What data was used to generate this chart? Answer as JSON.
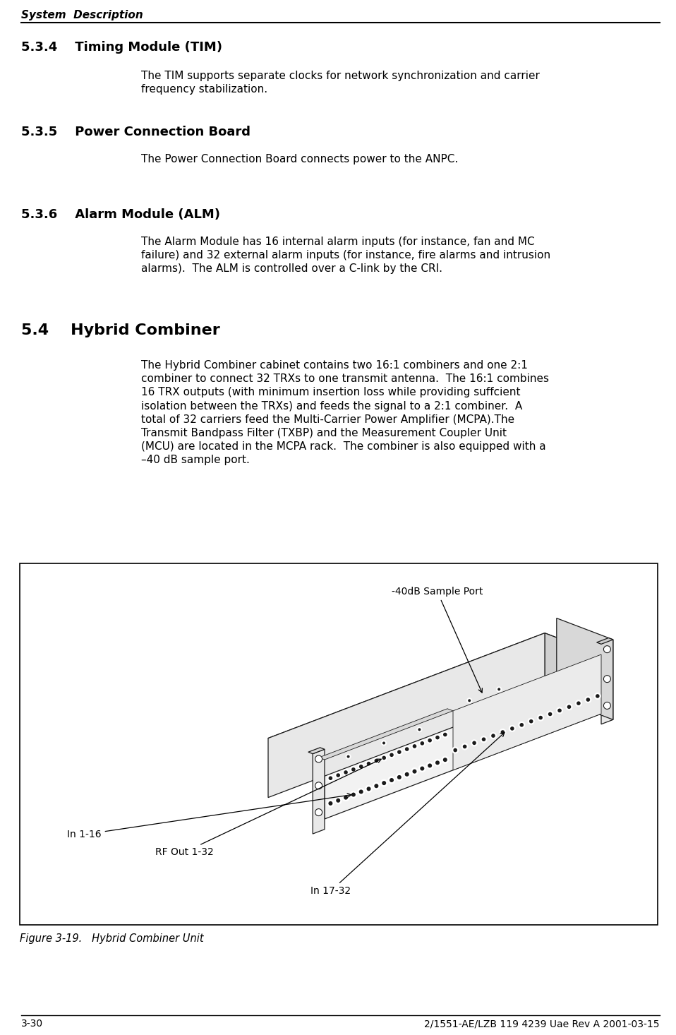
{
  "page_bg": "#ffffff",
  "header_text": "System  Description",
  "footer_left": "3-30",
  "footer_right": "2/1551-AE/LZB 119 4239 Uae Rev A 2001-03-15",
  "section_534_title": "5.3.4    Timing Module (TIM)",
  "section_534_body": "The TIM supports separate clocks for network synchronization and carrier\nfrequency stabilization.",
  "section_535_title": "5.3.5    Power Connection Board",
  "section_535_body": "The Power Connection Board connects power to the ANPC.",
  "section_536_title": "5.3.6    Alarm Module (ALM)",
  "section_536_body": "The Alarm Module has 16 internal alarm inputs (for instance, fan and MC\nfailure) and 32 external alarm inputs (for instance, fire alarms and intrusion\nalarms).  The ALM is controlled over a C-link by the CRI.",
  "section_54_title": "5.4    Hybrid Combiner",
  "section_54_body": "The Hybrid Combiner cabinet contains two 16:1 combiners and one 2:1\ncombiner to connect 32 TRXs to one transmit antenna.  The 16:1 combines\n16 TRX outputs (with minimum insertion loss while providing suffcient\nisolation between the TRXs) and feeds the signal to a 2:1 combiner.  A\ntotal of 32 carriers feed the Multi-Carrier Power Amplifier (MCPA).The\nTransmit Bandpass Filter (TXBP) and the Measurement Coupler Unit\n(MCU) are located in the MCPA rack.  The combiner is also equipped with a\n–40 dB sample port.",
  "figure_caption": "Figure 3-19.   Hybrid Combiner Unit",
  "ann_sample_port": "-40dB Sample Port",
  "ann_in116": "In 1-16",
  "ann_rfout": "RF Out 1-32",
  "ann_in1732": "In 17-32"
}
